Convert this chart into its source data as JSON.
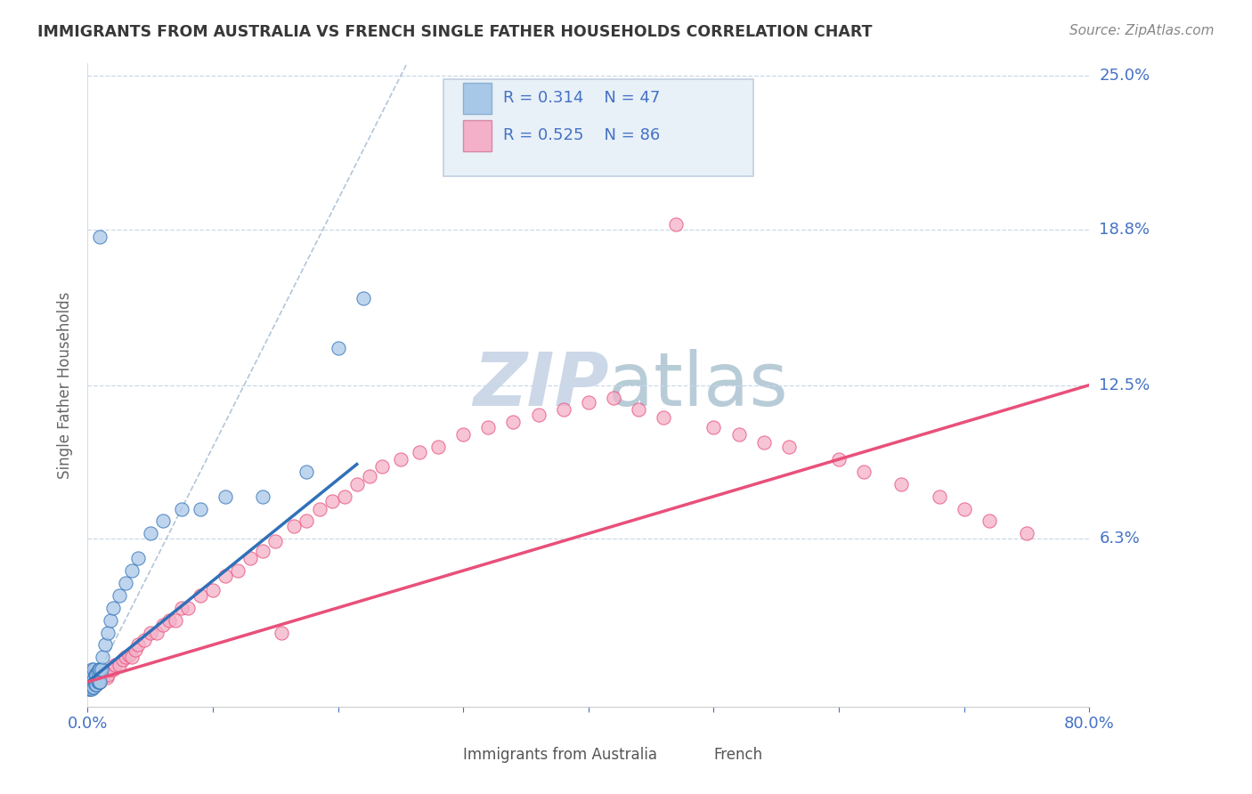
{
  "title": "IMMIGRANTS FROM AUSTRALIA VS FRENCH SINGLE FATHER HOUSEHOLDS CORRELATION CHART",
  "source": "Source: ZipAtlas.com",
  "ylabel": "Single Father Households",
  "xlim": [
    0.0,
    0.8
  ],
  "ylim": [
    -0.005,
    0.255
  ],
  "ytick_values": [
    0.0,
    0.063,
    0.125,
    0.188,
    0.25
  ],
  "ytick_labels_right": [
    "",
    "6.3%",
    "12.5%",
    "18.8%",
    "25.0%"
  ],
  "ytick_grid_values": [
    0.063,
    0.125,
    0.188,
    0.25
  ],
  "xtick_values": [
    0.0,
    0.1,
    0.2,
    0.3,
    0.4,
    0.5,
    0.6,
    0.7,
    0.8
  ],
  "xtick_labels": [
    "0.0%",
    "",
    "",
    "",
    "",
    "",
    "",
    "",
    "80.0%"
  ],
  "color_blue_scatter": "#a8c8e8",
  "color_pink_scatter": "#f4b0c8",
  "color_blue_line": "#3070b8",
  "color_pink_line": "#e8507a",
  "color_diag_line": "#a0b8d0",
  "color_grid": "#c8d8e8",
  "text_color_axis": "#4472c4",
  "title_color": "#383838",
  "source_color": "#888888",
  "legend_box_color": "#e8f0f8",
  "legend_border_color": "#c0d0e0",
  "watermark_color": "#ccd8e8",
  "blue_line_x0": 0.0,
  "blue_line_y0": 0.005,
  "blue_line_x1": 0.215,
  "blue_line_y1": 0.093,
  "pink_line_x0": 0.0,
  "pink_line_y0": 0.005,
  "pink_line_x1": 0.8,
  "pink_line_y1": 0.125,
  "diag_line_x0": 0.0,
  "diag_line_y0": 0.0,
  "diag_line_x1": 0.255,
  "diag_line_y1": 0.255,
  "blue_pts_x": [
    0.001,
    0.001,
    0.001,
    0.002,
    0.002,
    0.002,
    0.002,
    0.003,
    0.003,
    0.003,
    0.003,
    0.004,
    0.004,
    0.004,
    0.005,
    0.005,
    0.005,
    0.006,
    0.006,
    0.007,
    0.007,
    0.008,
    0.008,
    0.009,
    0.009,
    0.01,
    0.01,
    0.011,
    0.012,
    0.014,
    0.016,
    0.018,
    0.02,
    0.025,
    0.03,
    0.035,
    0.04,
    0.05,
    0.06,
    0.075,
    0.09,
    0.11,
    0.14,
    0.175,
    0.2,
    0.22,
    0.01
  ],
  "blue_pts_y": [
    0.002,
    0.003,
    0.004,
    0.002,
    0.003,
    0.005,
    0.007,
    0.002,
    0.004,
    0.006,
    0.01,
    0.003,
    0.005,
    0.008,
    0.003,
    0.006,
    0.01,
    0.004,
    0.008,
    0.004,
    0.008,
    0.005,
    0.009,
    0.005,
    0.01,
    0.005,
    0.01,
    0.01,
    0.015,
    0.02,
    0.025,
    0.03,
    0.035,
    0.04,
    0.045,
    0.05,
    0.055,
    0.065,
    0.07,
    0.075,
    0.075,
    0.08,
    0.08,
    0.09,
    0.14,
    0.16,
    0.185
  ],
  "pink_pts_x": [
    0.001,
    0.001,
    0.001,
    0.002,
    0.002,
    0.002,
    0.003,
    0.003,
    0.003,
    0.004,
    0.004,
    0.005,
    0.005,
    0.006,
    0.006,
    0.007,
    0.007,
    0.008,
    0.008,
    0.009,
    0.01,
    0.01,
    0.011,
    0.012,
    0.013,
    0.014,
    0.015,
    0.016,
    0.018,
    0.02,
    0.022,
    0.025,
    0.028,
    0.03,
    0.033,
    0.035,
    0.038,
    0.04,
    0.045,
    0.05,
    0.055,
    0.06,
    0.065,
    0.07,
    0.075,
    0.08,
    0.09,
    0.1,
    0.11,
    0.12,
    0.13,
    0.14,
    0.15,
    0.155,
    0.165,
    0.175,
    0.185,
    0.195,
    0.205,
    0.215,
    0.225,
    0.235,
    0.25,
    0.265,
    0.28,
    0.3,
    0.32,
    0.34,
    0.36,
    0.38,
    0.4,
    0.42,
    0.44,
    0.46,
    0.5,
    0.52,
    0.54,
    0.56,
    0.6,
    0.62,
    0.65,
    0.68,
    0.7,
    0.72,
    0.75,
    0.47
  ],
  "pink_pts_y": [
    0.003,
    0.005,
    0.007,
    0.004,
    0.006,
    0.008,
    0.003,
    0.006,
    0.009,
    0.004,
    0.007,
    0.004,
    0.008,
    0.004,
    0.008,
    0.004,
    0.008,
    0.005,
    0.009,
    0.005,
    0.005,
    0.009,
    0.008,
    0.007,
    0.008,
    0.009,
    0.007,
    0.008,
    0.01,
    0.01,
    0.012,
    0.012,
    0.014,
    0.015,
    0.016,
    0.015,
    0.018,
    0.02,
    0.022,
    0.025,
    0.025,
    0.028,
    0.03,
    0.03,
    0.035,
    0.035,
    0.04,
    0.042,
    0.048,
    0.05,
    0.055,
    0.058,
    0.062,
    0.025,
    0.068,
    0.07,
    0.075,
    0.078,
    0.08,
    0.085,
    0.088,
    0.092,
    0.095,
    0.098,
    0.1,
    0.105,
    0.108,
    0.11,
    0.113,
    0.115,
    0.118,
    0.12,
    0.115,
    0.112,
    0.108,
    0.105,
    0.102,
    0.1,
    0.095,
    0.09,
    0.085,
    0.08,
    0.075,
    0.07,
    0.065,
    0.19
  ]
}
